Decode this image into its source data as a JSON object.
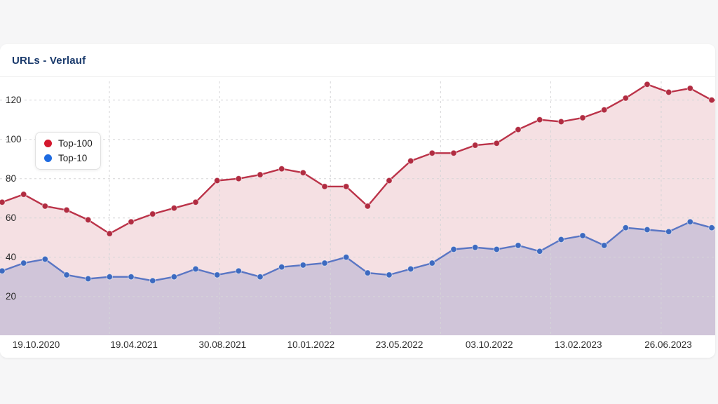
{
  "page": {
    "background_color": "#f6f6f7"
  },
  "card": {
    "title": "URLs - Verlauf",
    "title_color": "#1a3a6c"
  },
  "legend": {
    "position": "top-left",
    "items": [
      {
        "label": "Top-100",
        "dot_color": "#d4182e"
      },
      {
        "label": "Top-10",
        "dot_color": "#1e6be1"
      }
    ]
  },
  "chart_data": {
    "type": "area",
    "title": "URLs - Verlauf",
    "xlabel": "",
    "ylabel": "",
    "ylim": [
      0,
      130
    ],
    "y_ticks": [
      20,
      40,
      60,
      80,
      100,
      120
    ],
    "grid": true,
    "grid_style": "dashed",
    "x_tick_labels": [
      "19.10.2020",
      "19.04.2021",
      "30.08.2021",
      "10.01.2022",
      "23.05.2022",
      "03.10.2022",
      "13.02.2023",
      "26.06.2023"
    ],
    "series": [
      {
        "name": "Top-100",
        "line_color": "#bb3349",
        "dot_color": "#b12c41",
        "fill_color": "rgba(187,48,69,0.15)",
        "values": [
          68,
          72,
          66,
          64,
          59,
          52,
          58,
          62,
          65,
          68,
          79,
          80,
          82,
          85,
          83,
          76,
          76,
          66,
          79,
          89,
          93,
          93,
          97,
          98,
          105,
          110,
          109,
          111,
          115,
          121,
          128,
          124,
          126,
          120
        ]
      },
      {
        "name": "Top-10",
        "line_color": "#5a76c4",
        "dot_color": "#3d6ac0",
        "fill_color": "rgba(60,90,180,0.20)",
        "values": [
          33,
          37,
          39,
          31,
          29,
          30,
          30,
          28,
          30,
          34,
          31,
          33,
          30,
          35,
          36,
          37,
          40,
          32,
          31,
          34,
          37,
          44,
          45,
          44,
          46,
          43,
          49,
          51,
          46,
          55,
          54,
          53,
          58,
          55
        ]
      }
    ]
  }
}
